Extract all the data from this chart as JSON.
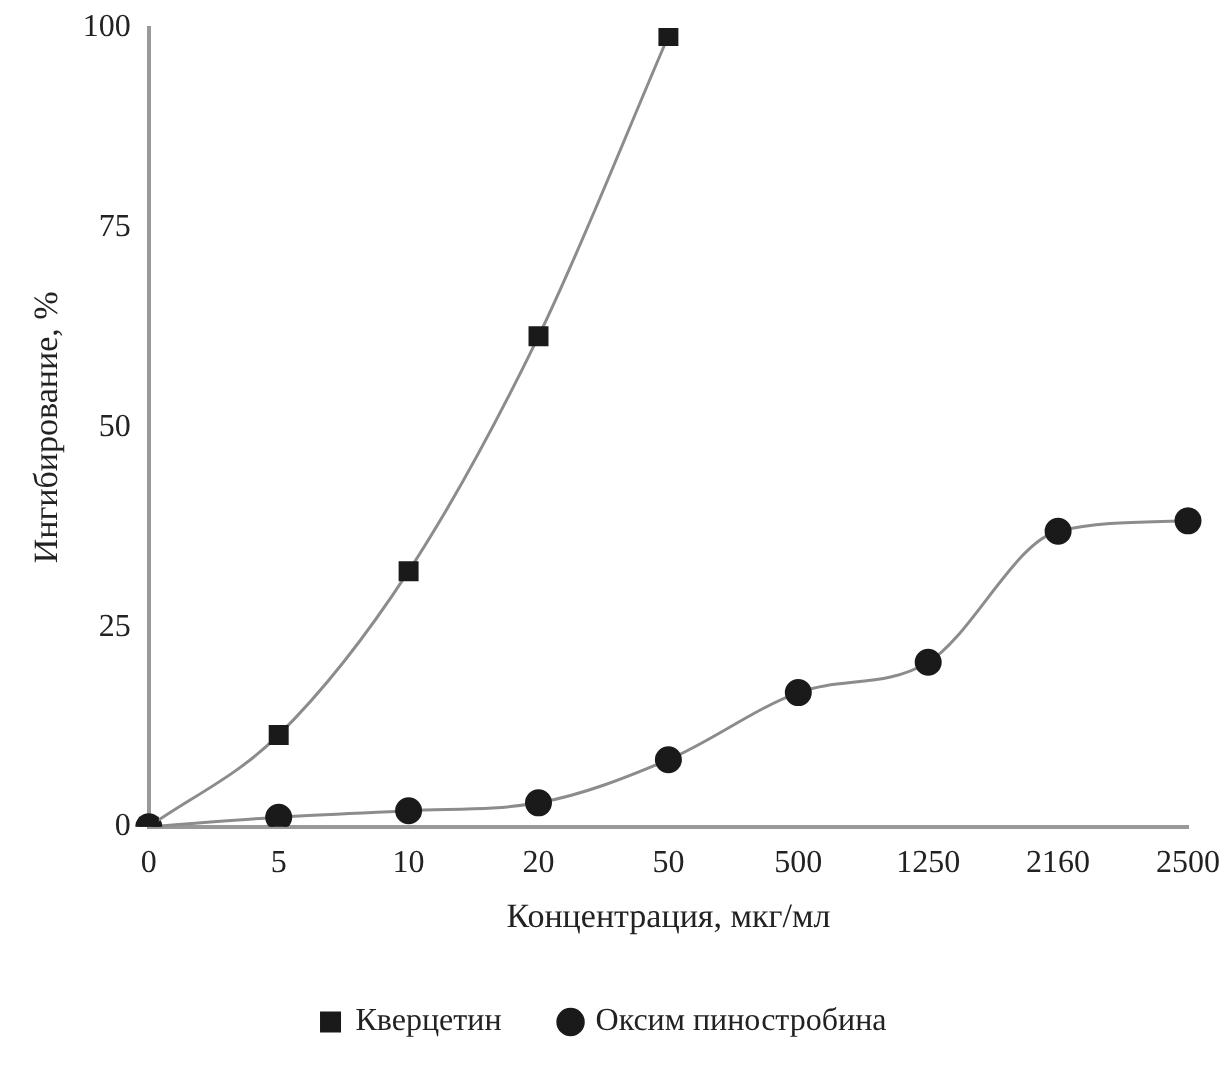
{
  "chart_data": {
    "type": "line",
    "xlabel": "Концентрация, мкг/мл",
    "ylabel": "Ингибирование, %",
    "categories": [
      "0",
      "5",
      "10",
      "20",
      "50",
      "500",
      "1250",
      "2160",
      "2500"
    ],
    "series": [
      {
        "name": "Кверцетин",
        "color": "#1a1a1a",
        "marker": "square",
        "values": [
          0,
          11.5,
          32,
          61.4,
          99,
          null,
          null,
          null,
          null
        ]
      },
      {
        "name": "Оксим пиностробина",
        "color": "#1a1a1a",
        "marker": "circle",
        "values": [
          0,
          1.2,
          2,
          3,
          8.4,
          16.8,
          20.6,
          37,
          38.3
        ]
      }
    ],
    "ylim": [
      0,
      100
    ],
    "yticks": [
      0,
      25,
      50,
      75,
      100
    ],
    "grid": false,
    "legend": "bottom"
  }
}
